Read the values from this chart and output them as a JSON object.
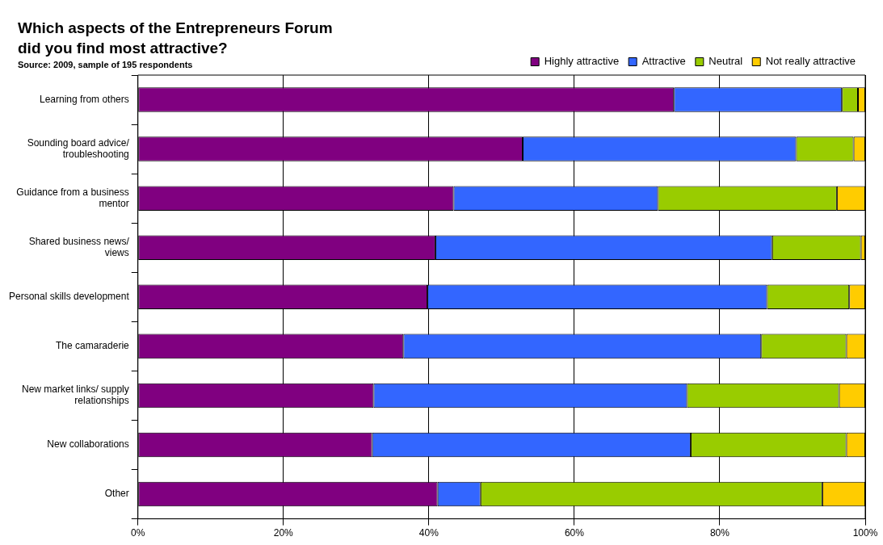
{
  "chart_data": {
    "type": "bar",
    "orientation": "horizontal",
    "stacked": true,
    "title": [
      "Which aspects of the Entrepreneurs Forum",
      "did you find most attractive?"
    ],
    "subtitle": "Source: 2009, sample of 195 respondents",
    "categories": [
      "Learning from others",
      "Sounding board advice/troubleshooting",
      "Guidance from a business mentor",
      "Shared business news/views",
      "Personal skills development",
      "The camaraderie",
      "New market links/ supply relationships",
      "New collaborations",
      "Other"
    ],
    "series": [
      {
        "name": "Highly attractive",
        "color": "#800080",
        "values": [
          73.7,
          52.9,
          43.4,
          40.9,
          39.8,
          36.5,
          32.4,
          32.2,
          41.2
        ]
      },
      {
        "name": "Attractive",
        "color": "#3366ff",
        "values": [
          23.1,
          37.6,
          28.1,
          46.3,
          46.7,
          49.2,
          43.1,
          43.8,
          5.9
        ]
      },
      {
        "name": "Neutral",
        "color": "#99cc00",
        "values": [
          2.2,
          7.9,
          24.6,
          12.2,
          11.3,
          11.7,
          20.9,
          21.4,
          47.0
        ]
      },
      {
        "name": "Not really attractive",
        "color": "#ffcc00",
        "values": [
          1.0,
          1.6,
          3.9,
          0.6,
          2.2,
          2.6,
          3.6,
          2.6,
          5.9
        ]
      }
    ],
    "xlim": [
      0,
      100
    ],
    "xticks": [
      {
        "value": 0,
        "label": "0%"
      },
      {
        "value": 20,
        "label": "20%"
      },
      {
        "value": 40,
        "label": "40%"
      },
      {
        "value": 60,
        "label": "60%"
      },
      {
        "value": 80,
        "label": "80%"
      },
      {
        "value": 100,
        "label": "100%"
      }
    ],
    "grid": "x",
    "legend": "top right"
  }
}
